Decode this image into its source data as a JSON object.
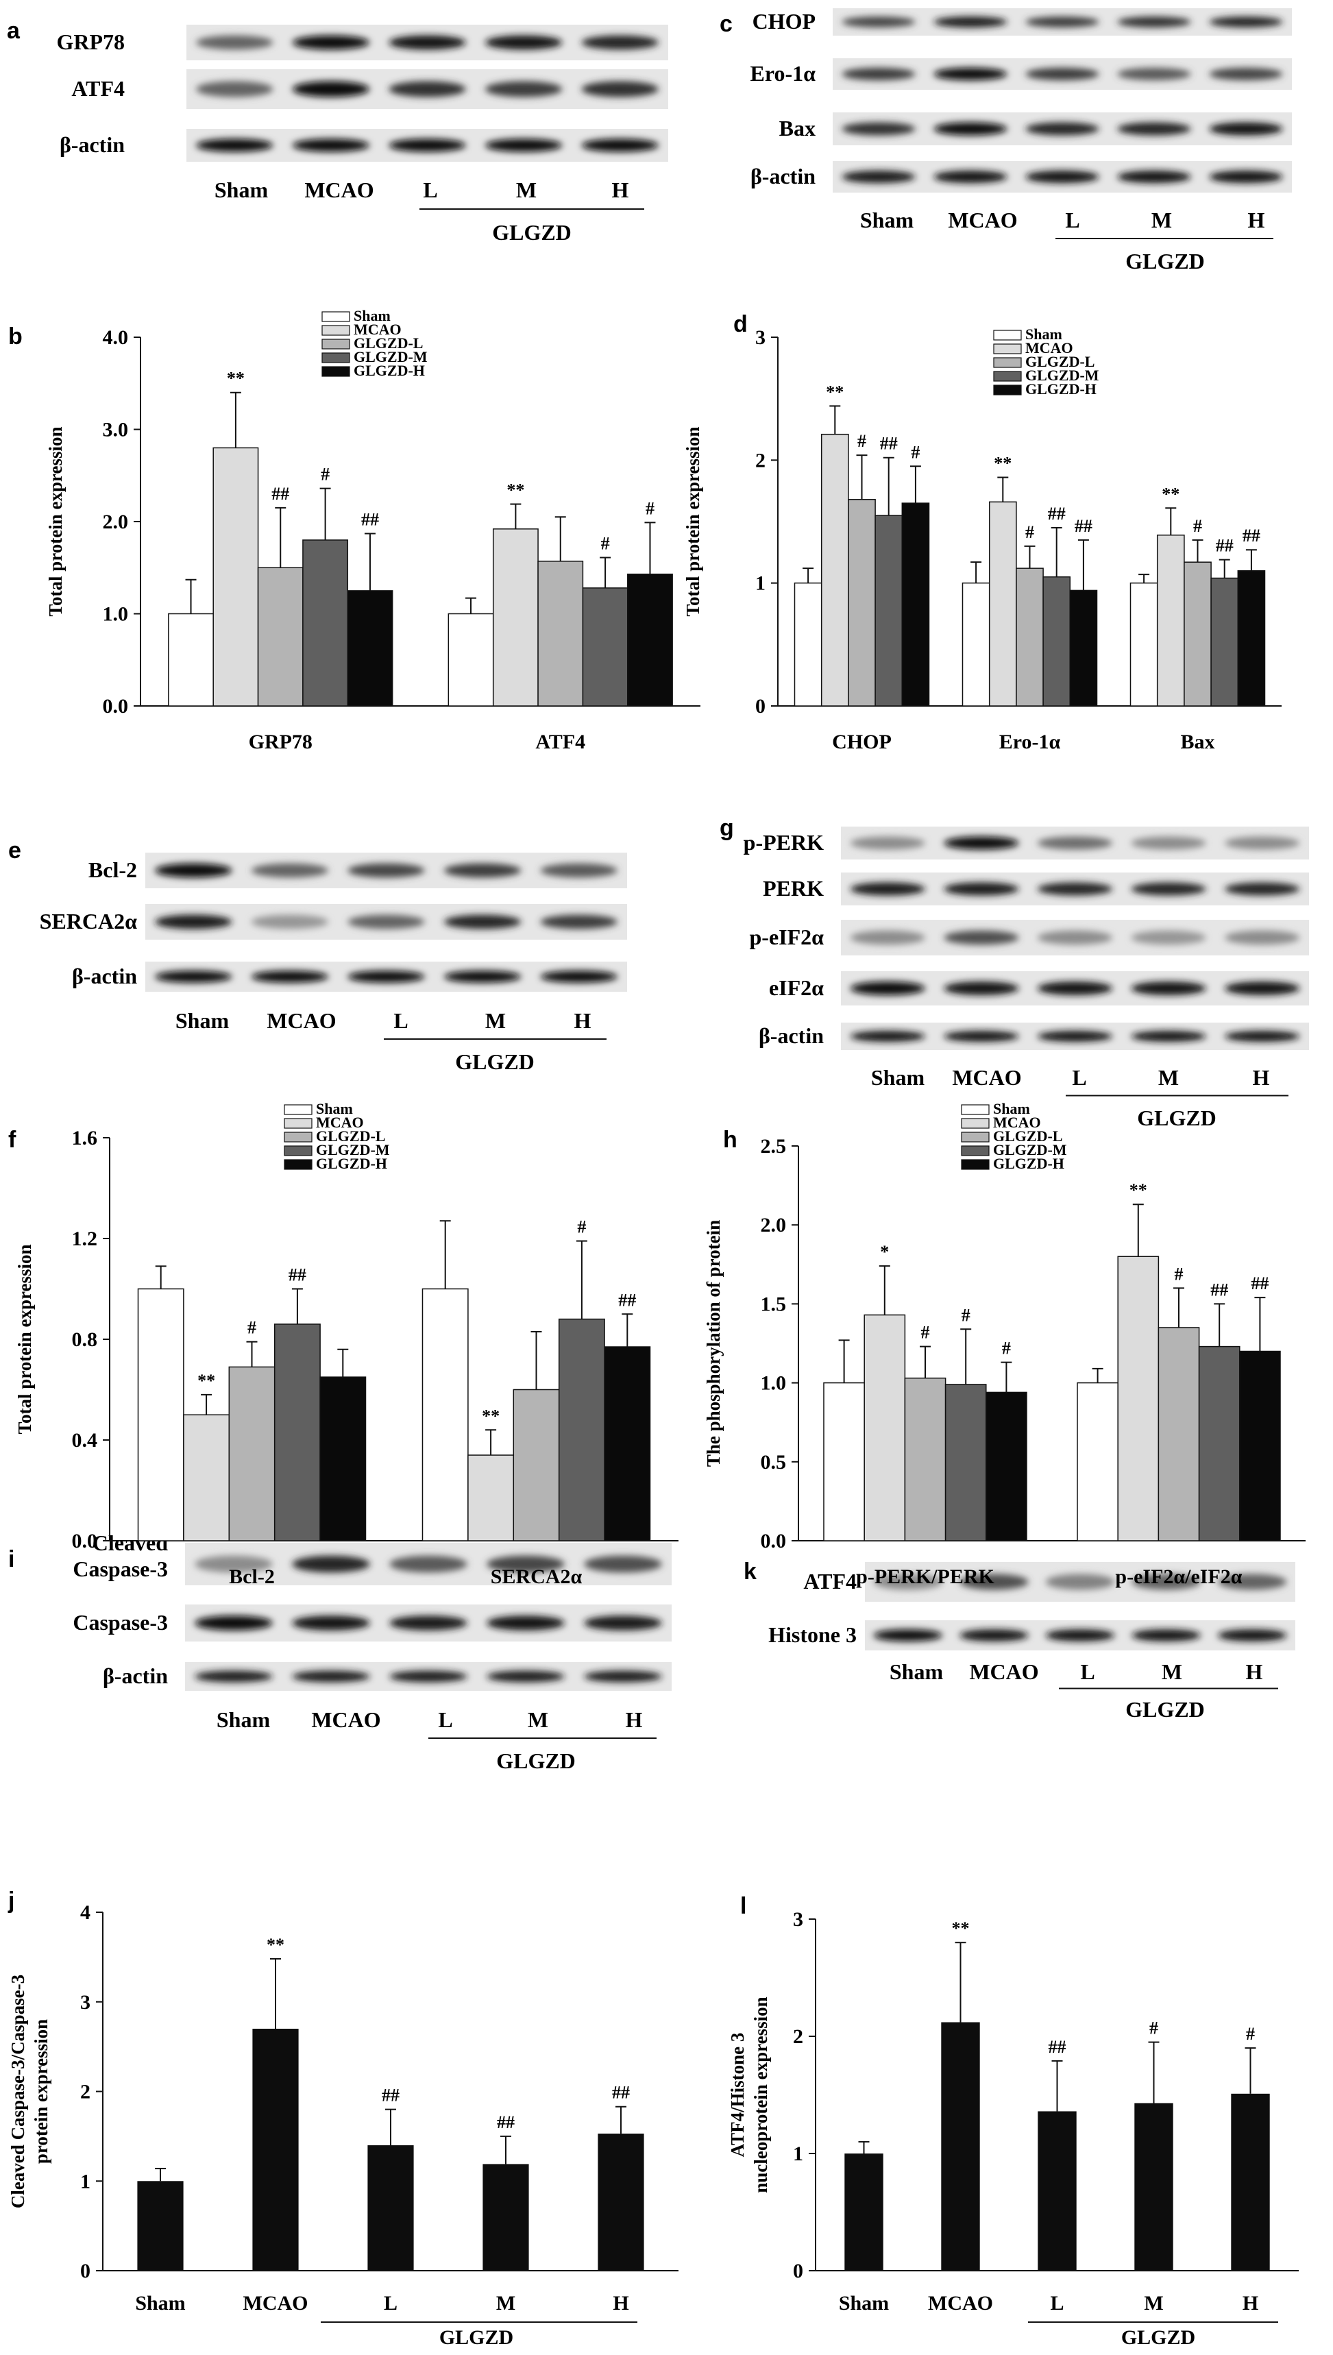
{
  "colors": {
    "Sham": "#ffffff",
    "MCAO": "#dcdcdc",
    "GLGZD-L": "#b4b4b4",
    "GLGZD-M": "#606060",
    "GLGZD-H": "#0a0a0a",
    "bar_single": "#0d0d0d"
  },
  "legend_names": [
    "Sham",
    "MCAO",
    "GLGZD-L",
    "GLGZD-M",
    "GLGZD-H"
  ],
  "lanes5": [
    "Sham",
    "MCAO",
    "L",
    "M",
    "H"
  ],
  "group_label": "GLGZD",
  "blots": {
    "a": {
      "letter": "a",
      "rows": [
        "GRP78",
        "ATF4",
        "β-actin"
      ]
    },
    "c": {
      "letter": "c",
      "rows": [
        "CHOP",
        "Ero-1α",
        "Bax",
        "β-actin"
      ]
    },
    "e": {
      "letter": "e",
      "rows": [
        "Bcl-2",
        "SERCA2α",
        "β-actin"
      ]
    },
    "g": {
      "letter": "g",
      "rows": [
        "p-PERK",
        "PERK",
        "p-eIF2α",
        "eIF2α",
        "β-actin"
      ]
    },
    "i": {
      "letter": "i",
      "rows": [
        "Cleaved Caspase-3",
        "Caspase-3",
        "β-actin"
      ]
    },
    "k": {
      "letter": "k",
      "rows": [
        "ATF4",
        "Histone 3"
      ]
    }
  },
  "chart_data": [
    {
      "panel": "b",
      "type": "bar",
      "categories": [
        "GRP78",
        "ATF4"
      ],
      "ylabel": "Total protein expression",
      "ylim": [
        0,
        4
      ],
      "yticks": [
        "0.0",
        "1.0",
        "2.0",
        "3.0",
        "4.0"
      ],
      "yticks_values": [
        0,
        1,
        2,
        3,
        4
      ],
      "legend": "top-center",
      "series": [
        {
          "name": "Sham",
          "values": [
            1.0,
            1.0
          ],
          "errors": [
            0.37,
            0.17
          ],
          "sig": [
            "",
            ""
          ]
        },
        {
          "name": "MCAO",
          "values": [
            2.8,
            1.92
          ],
          "errors": [
            0.6,
            0.27
          ],
          "sig": [
            "**",
            "**"
          ]
        },
        {
          "name": "GLGZD-L",
          "values": [
            1.5,
            1.57
          ],
          "errors": [
            0.65,
            0.48
          ],
          "sig": [
            "##",
            ""
          ]
        },
        {
          "name": "GLGZD-M",
          "values": [
            1.8,
            1.28
          ],
          "errors": [
            0.56,
            0.33
          ],
          "sig": [
            "#",
            "#"
          ]
        },
        {
          "name": "GLGZD-H",
          "values": [
            1.25,
            1.43
          ],
          "errors": [
            0.62,
            0.56
          ],
          "sig": [
            "##",
            "#"
          ]
        }
      ]
    },
    {
      "panel": "d",
      "type": "bar",
      "categories": [
        "CHOP",
        "Ero-1α",
        "Bax"
      ],
      "ylabel": "Total protein expression",
      "ylim": [
        0,
        3
      ],
      "yticks": [
        "0",
        "1",
        "2",
        "3"
      ],
      "yticks_values": [
        0,
        1,
        2,
        3
      ],
      "legend": "top-center",
      "series": [
        {
          "name": "Sham",
          "values": [
            1.0,
            1.0,
            1.0
          ],
          "errors": [
            0.12,
            0.17,
            0.07
          ],
          "sig": [
            "",
            "",
            ""
          ]
        },
        {
          "name": "MCAO",
          "values": [
            2.21,
            1.66,
            1.39
          ],
          "errors": [
            0.23,
            0.2,
            0.22
          ],
          "sig": [
            "**",
            "**",
            "**"
          ]
        },
        {
          "name": "GLGZD-L",
          "values": [
            1.68,
            1.12,
            1.17
          ],
          "errors": [
            0.36,
            0.18,
            0.18
          ],
          "sig": [
            "#",
            "#",
            "#"
          ]
        },
        {
          "name": "GLGZD-M",
          "values": [
            1.55,
            1.05,
            1.04
          ],
          "errors": [
            0.47,
            0.4,
            0.15
          ],
          "sig": [
            "##",
            "##",
            "##"
          ]
        },
        {
          "name": "GLGZD-H",
          "values": [
            1.65,
            0.94,
            1.1
          ],
          "errors": [
            0.3,
            0.41,
            0.17
          ],
          "sig": [
            "#",
            "##",
            "##"
          ]
        }
      ]
    },
    {
      "panel": "f",
      "type": "bar",
      "categories": [
        "Bcl-2",
        "SERCA2α"
      ],
      "ylabel": "Total protein expression",
      "ylim": [
        0,
        1.6
      ],
      "yticks": [
        "0.0",
        "0.4",
        "0.8",
        "1.2",
        "1.6"
      ],
      "yticks_values": [
        0,
        0.4,
        0.8,
        1.2,
        1.6
      ],
      "legend": "top-center",
      "series": [
        {
          "name": "Sham",
          "values": [
            1.0,
            1.0
          ],
          "errors": [
            0.09,
            0.27
          ],
          "sig": [
            "",
            ""
          ]
        },
        {
          "name": "MCAO",
          "values": [
            0.5,
            0.34
          ],
          "errors": [
            0.08,
            0.1
          ],
          "sig": [
            "**",
            "**"
          ]
        },
        {
          "name": "GLGZD-L",
          "values": [
            0.69,
            0.6
          ],
          "errors": [
            0.1,
            0.23
          ],
          "sig": [
            "#",
            ""
          ]
        },
        {
          "name": "GLGZD-M",
          "values": [
            0.86,
            0.88
          ],
          "errors": [
            0.14,
            0.31
          ],
          "sig": [
            "##",
            "#"
          ]
        },
        {
          "name": "GLGZD-H",
          "values": [
            0.65,
            0.77
          ],
          "errors": [
            0.11,
            0.13
          ],
          "sig": [
            "",
            "##"
          ]
        }
      ]
    },
    {
      "panel": "h",
      "type": "bar",
      "categories": [
        "p-PERK/PERK",
        "p-eIF2α/eIF2α"
      ],
      "ylabel": "The phosphorylation of protein",
      "ylim": [
        0,
        2.5
      ],
      "yticks": [
        "0.0",
        "0.5",
        "1.0",
        "1.5",
        "2.0",
        "2.5"
      ],
      "yticks_values": [
        0,
        0.5,
        1,
        1.5,
        2,
        2.5
      ],
      "legend": "top-center",
      "series": [
        {
          "name": "Sham",
          "values": [
            1.0,
            1.0
          ],
          "errors": [
            0.27,
            0.09
          ],
          "sig": [
            "",
            ""
          ]
        },
        {
          "name": "MCAO",
          "values": [
            1.43,
            1.8
          ],
          "errors": [
            0.31,
            0.33
          ],
          "sig": [
            "*",
            "**"
          ]
        },
        {
          "name": "GLGZD-L",
          "values": [
            1.03,
            1.35
          ],
          "errors": [
            0.2,
            0.25
          ],
          "sig": [
            "#",
            "#"
          ]
        },
        {
          "name": "GLGZD-M",
          "values": [
            0.99,
            1.23
          ],
          "errors": [
            0.35,
            0.27
          ],
          "sig": [
            "#",
            "##"
          ]
        },
        {
          "name": "GLGZD-H",
          "values": [
            0.94,
            1.2
          ],
          "errors": [
            0.19,
            0.34
          ],
          "sig": [
            "#",
            "##"
          ]
        }
      ]
    },
    {
      "panel": "j",
      "type": "bar",
      "categories": [
        "Sham",
        "MCAO",
        "L",
        "M",
        "H"
      ],
      "group_label": "GLGZD",
      "ylabel": "Cleaved Caspase-3/Caspase-3 protein expression",
      "ylim": [
        0,
        4
      ],
      "yticks": [
        "0",
        "1",
        "2",
        "3",
        "4"
      ],
      "yticks_values": [
        0,
        1,
        2,
        3,
        4
      ],
      "values": [
        1.0,
        2.7,
        1.4,
        1.19,
        1.53
      ],
      "errors": [
        0.14,
        0.78,
        0.4,
        0.31,
        0.3
      ],
      "sig": [
        "",
        "**",
        "##",
        "##",
        "##"
      ]
    },
    {
      "panel": "l",
      "type": "bar",
      "categories": [
        "Sham",
        "MCAO",
        "L",
        "M",
        "H"
      ],
      "group_label": "GLGZD",
      "ylabel": "ATF4/Histone 3 nucleoprotein expression",
      "ylim": [
        0,
        3
      ],
      "yticks": [
        "0",
        "1",
        "2",
        "3"
      ],
      "yticks_values": [
        0,
        1,
        2,
        3
      ],
      "values": [
        1.0,
        2.12,
        1.36,
        1.43,
        1.51
      ],
      "errors": [
        0.1,
        0.68,
        0.43,
        0.52,
        0.39
      ],
      "sig": [
        "",
        "**",
        "##",
        "#",
        "#"
      ]
    }
  ]
}
